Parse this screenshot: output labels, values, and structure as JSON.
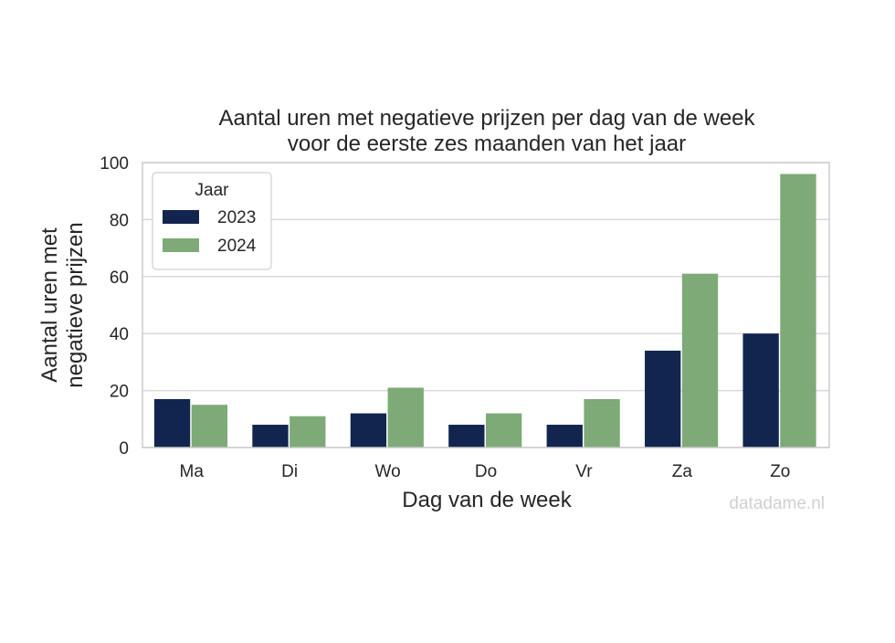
{
  "chart_data": {
    "type": "bar",
    "title": "Aantal uren met negatieve prijzen per dag van de week",
    "subtitle": "voor de eerste zes maanden van het jaar",
    "xlabel": "Dag van de week",
    "ylabel": "Aantal uren met",
    "ylabel_line2": "negatieve prijzen",
    "categories": [
      "Ma",
      "Di",
      "Wo",
      "Do",
      "Vr",
      "Za",
      "Zo"
    ],
    "series": [
      {
        "name": "2023",
        "color": "#12254f",
        "values": [
          17,
          8,
          12,
          8,
          8,
          34,
          40
        ]
      },
      {
        "name": "2024",
        "color": "#7daa76",
        "values": [
          15,
          11,
          21,
          12,
          17,
          61,
          96
        ]
      }
    ],
    "ylim": [
      0,
      100
    ],
    "yticks": [
      0,
      20,
      40,
      60,
      80,
      100
    ],
    "grid": true,
    "legend": {
      "title": "Jaar",
      "position": "top-left"
    },
    "watermark": "datadame.nl"
  }
}
